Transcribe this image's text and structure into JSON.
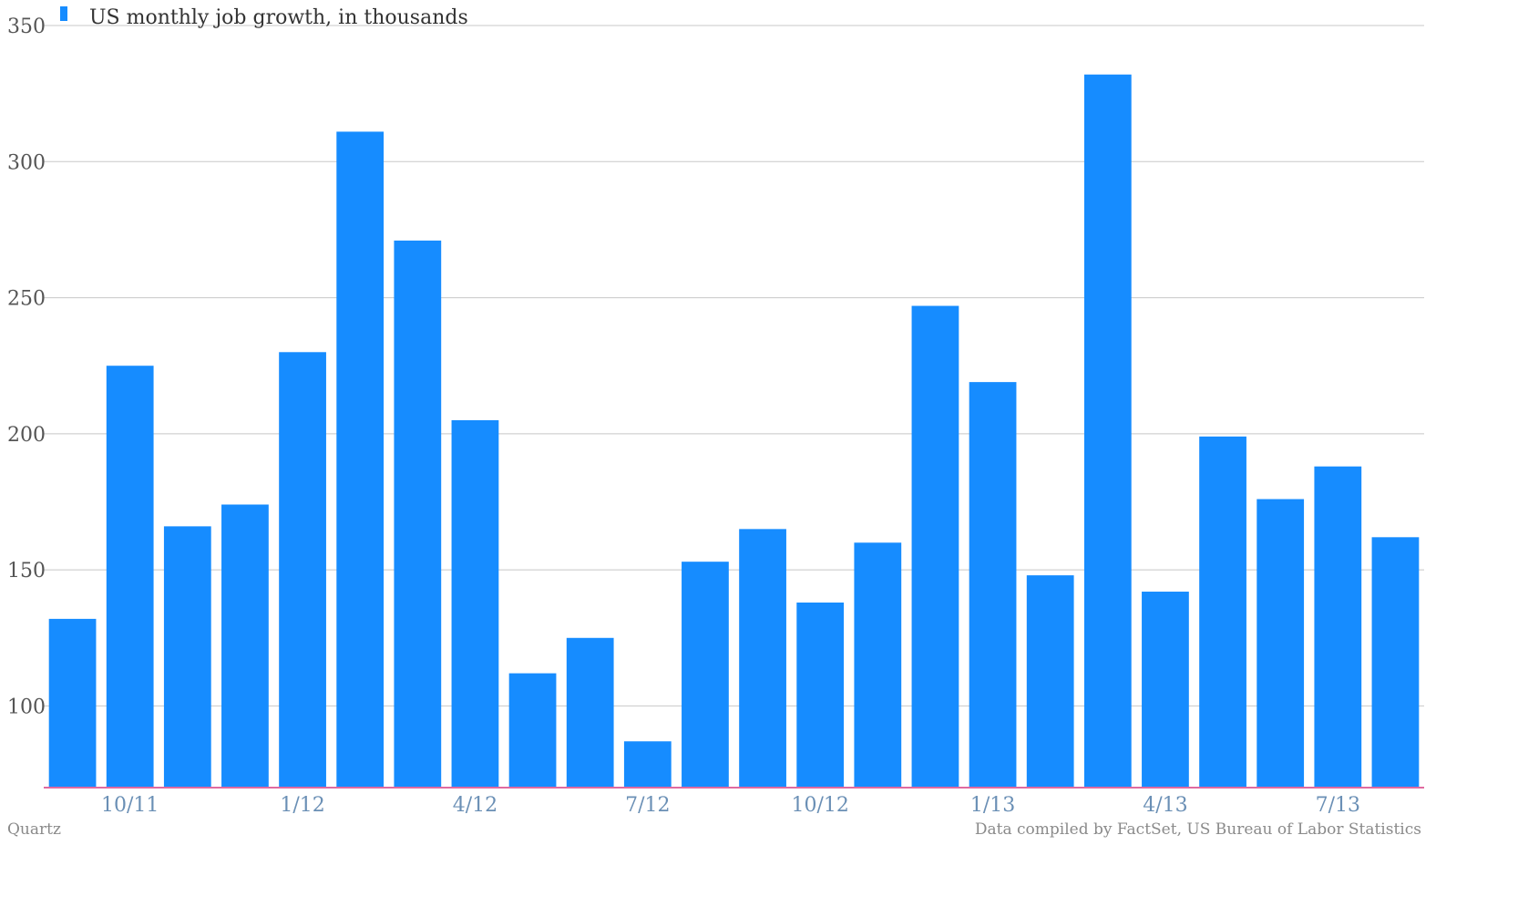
{
  "chart_data": {
    "type": "bar",
    "title": "",
    "xlabel": "",
    "ylabel": "",
    "ylim": [
      70,
      350
    ],
    "yticks": [
      350,
      300,
      250,
      200,
      150,
      100
    ],
    "grid": true,
    "legend_position": "top-left",
    "categories": [
      "9/11",
      "10/11",
      "11/11",
      "12/11",
      "1/12",
      "2/12",
      "3/12",
      "4/12",
      "5/12",
      "6/12",
      "7/12",
      "8/12",
      "9/12",
      "10/12",
      "11/12",
      "12/12",
      "1/13",
      "2/13",
      "3/13",
      "4/13",
      "5/13",
      "6/13",
      "7/13",
      "8/13"
    ],
    "x_tick_labels": [
      {
        "index": 1,
        "label": "10/11"
      },
      {
        "index": 4,
        "label": "1/12"
      },
      {
        "index": 7,
        "label": "4/12"
      },
      {
        "index": 10,
        "label": "7/12"
      },
      {
        "index": 13,
        "label": "10/12"
      },
      {
        "index": 16,
        "label": "1/13"
      },
      {
        "index": 19,
        "label": "4/13"
      },
      {
        "index": 22,
        "label": "7/13"
      }
    ],
    "series": [
      {
        "name": "US monthly job growth, in thousands",
        "color": "#168cff",
        "values": [
          132,
          225,
          166,
          174,
          230,
          311,
          271,
          205,
          112,
          125,
          87,
          153,
          165,
          138,
          160,
          247,
          219,
          148,
          332,
          142,
          199,
          176,
          188,
          162
        ]
      }
    ]
  },
  "footer": {
    "brand": "Quartz",
    "source": "Data compiled by FactSet, US Bureau of Labor Statistics"
  },
  "colors": {
    "bar": "#168cff",
    "grid": "#c8c8c8",
    "axis": "#e06aa0"
  }
}
